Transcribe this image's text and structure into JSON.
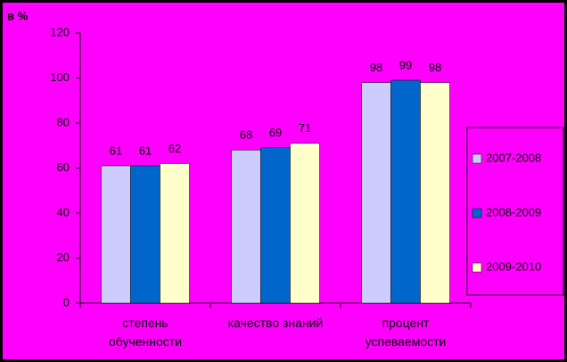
{
  "chart_data": {
    "type": "bar",
    "y_label": "в %",
    "categories": [
      "степень обученности",
      "качество знаний",
      "процент успеваемости"
    ],
    "series": [
      {
        "name": "2007-2008",
        "color": "#ccccff",
        "values": [
          61,
          68,
          98
        ]
      },
      {
        "name": "2008-2009",
        "color": "#0066cc",
        "values": [
          61,
          69,
          99
        ]
      },
      {
        "name": "2009-2010",
        "color": "#ffffcc",
        "values": [
          62,
          71,
          98
        ]
      }
    ],
    "ylim": [
      0,
      120
    ],
    "yticks": [
      0,
      20,
      40,
      60,
      80,
      100,
      120
    ],
    "grid": false,
    "legend": "right"
  }
}
